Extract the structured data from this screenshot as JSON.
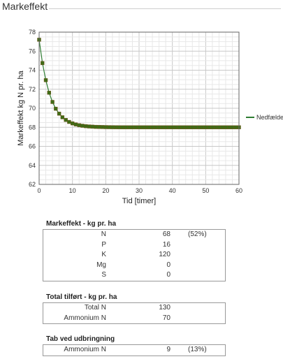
{
  "page": {
    "title": "Markeffekt"
  },
  "chart_data": {
    "type": "line",
    "xlabel": "Tid [timer]",
    "ylabel": "Markeffekt kg N pr. ha",
    "xlim": [
      0,
      60
    ],
    "ylim": [
      62,
      78
    ],
    "xticks": [
      "0",
      "10",
      "20",
      "30",
      "40",
      "50",
      "60"
    ],
    "yticks": [
      "62",
      "64",
      "66",
      "68",
      "70",
      "72",
      "74",
      "76",
      "78"
    ],
    "grid": true,
    "legend_position": "right",
    "series": [
      {
        "name": "Nedfældet",
        "line_color": "#2e7d32",
        "marker_color": "#3f6b16",
        "model": {
          "type": "exponential_decay",
          "plateau": 68.0,
          "initial": 77.2,
          "rate": 0.31,
          "x_step": 1,
          "x_max": 60
        }
      }
    ]
  },
  "sections": [
    {
      "title": "Markeffekt - kg pr. ha",
      "rows": [
        {
          "label": "N",
          "value": "68",
          "pct": "(52%)"
        },
        {
          "label": "P",
          "value": "16",
          "pct": ""
        },
        {
          "label": "K",
          "value": "120",
          "pct": ""
        },
        {
          "label": "Mg",
          "value": "0",
          "pct": ""
        },
        {
          "label": "S",
          "value": "0",
          "pct": ""
        }
      ]
    },
    {
      "title": "Total tilført - kg pr. ha",
      "rows": [
        {
          "label": "Total N",
          "value": "130",
          "pct": ""
        },
        {
          "label": "Ammonium N",
          "value": "70",
          "pct": ""
        }
      ]
    },
    {
      "title": "Tab ved udbringning",
      "rows": [
        {
          "label": "Ammonium N",
          "value": "9",
          "pct": "(13%)"
        }
      ]
    }
  ]
}
